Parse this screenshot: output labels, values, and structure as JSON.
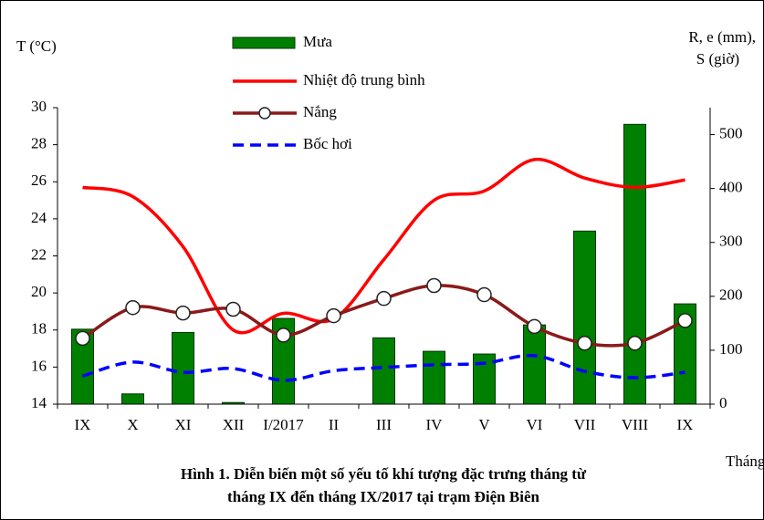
{
  "chart_data": {
    "type": "combo",
    "ylabel": "T (°C)",
    "y2label": [
      "R, e (mm),",
      "S (giờ)"
    ],
    "xlabel": "Tháng",
    "caption": [
      "Hình 1. Diễn biến một số yếu tố khí tượng đặc trưng tháng từ",
      "tháng IX đến tháng IX/2017  tại trạm Điện Biên"
    ],
    "categories": [
      "IX",
      "X",
      "XI",
      "XII",
      "I/2017",
      "II",
      "III",
      "IV",
      "V",
      "VI",
      "VII",
      "VIII",
      "IX"
    ],
    "ylim": [
      14,
      30
    ],
    "yticks": [
      14,
      16,
      18,
      20,
      22,
      24,
      26,
      28,
      30
    ],
    "y2lim": [
      0,
      550
    ],
    "y2ticks": [
      0,
      100,
      200,
      300,
      400,
      500
    ],
    "series": [
      {
        "name": "Mưa",
        "kind": "bar",
        "axis": "y2",
        "color": "#008000",
        "values": [
          139,
          19,
          133,
          3,
          159,
          0,
          123,
          98,
          93,
          147,
          321,
          519,
          186
        ]
      },
      {
        "name": "Nhiệt độ trung bình",
        "kind": "line",
        "color": "#ff0000",
        "values": [
          25.7,
          25.2,
          22.5,
          18.0,
          18.9,
          18.6,
          21.8,
          25.0,
          25.5,
          27.2,
          26.2,
          25.7,
          26.1
        ]
      },
      {
        "name": "Nắng",
        "kind": "marker-line",
        "axis": "y2",
        "color": "#8b1a1a",
        "values": [
          122,
          179,
          169,
          176,
          128,
          164,
          196,
          220,
          203,
          144,
          113,
          113,
          155
        ]
      },
      {
        "name": "Bốc hơi",
        "kind": "dashed",
        "axis": "y2",
        "color": "#0000ff",
        "values": [
          52,
          78,
          59,
          66,
          44,
          62,
          68,
          73,
          76,
          90,
          61,
          49,
          59
        ]
      }
    ]
  }
}
